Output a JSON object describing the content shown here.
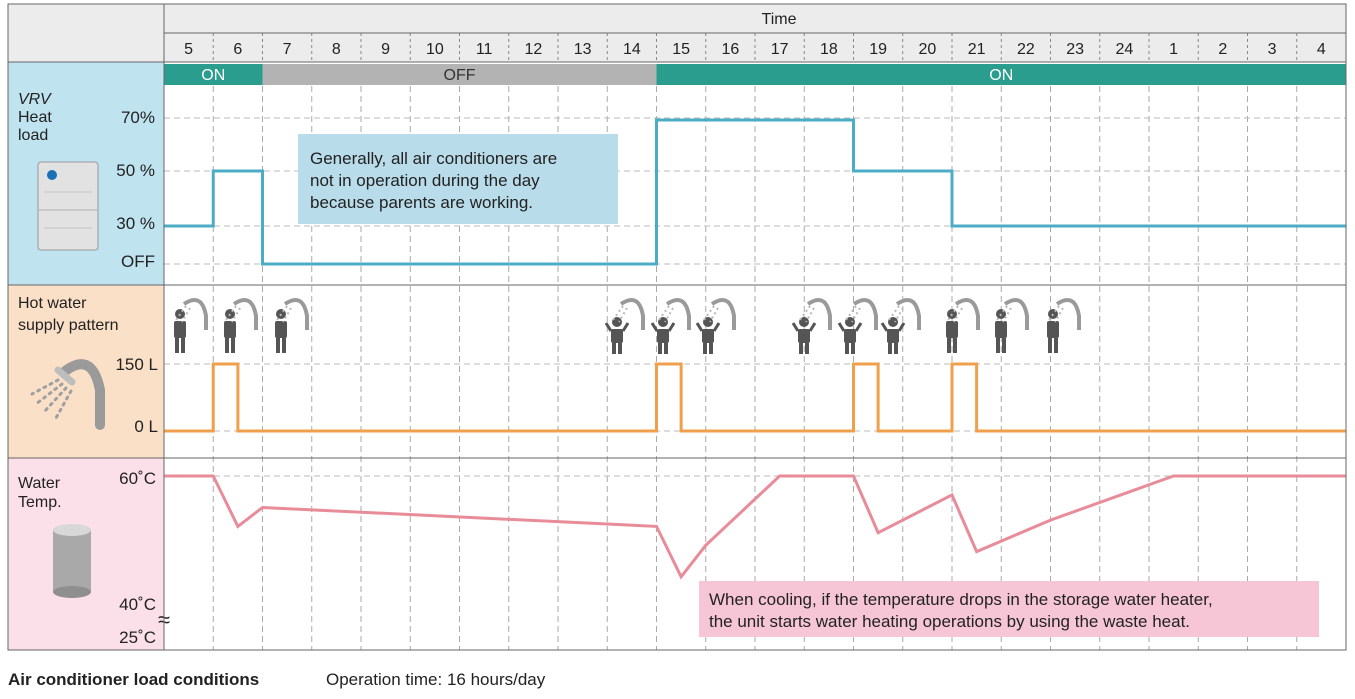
{
  "header": {
    "time_label": "Time"
  },
  "hours": [
    "5",
    "6",
    "7",
    "8",
    "9",
    "10",
    "11",
    "12",
    "13",
    "14",
    "15",
    "16",
    "17",
    "18",
    "19",
    "20",
    "21",
    "22",
    "23",
    "24",
    "1",
    "2",
    "3",
    "4"
  ],
  "operation_bar": [
    {
      "label": "ON",
      "state": "on",
      "start_index": 0,
      "end_index": 2
    },
    {
      "label": "OFF",
      "state": "off",
      "start_index": 2,
      "end_index": 10
    },
    {
      "label": "ON",
      "state": "on",
      "start_index": 10,
      "end_index": 24
    }
  ],
  "sections": {
    "vrv": {
      "title_italic": "VRV",
      "title_rest": [
        "Heat",
        "load"
      ],
      "levels": [
        "70%",
        "50 %",
        "30 %",
        "OFF"
      ]
    },
    "hot_water": {
      "title": [
        "Hot water",
        "supply pattern"
      ],
      "levels": [
        "150 L",
        "0 L"
      ]
    },
    "water_temp": {
      "title": [
        "Water",
        "Temp."
      ],
      "levels": [
        "60˚C",
        "40˚C",
        "25˚C"
      ],
      "break_mark": "≈"
    }
  },
  "notes": {
    "heat_note": [
      "Generally, all air conditioners are",
      "not in operation during the day",
      "because parents are working."
    ],
    "cool_note": [
      "When cooling, if the temperature drops in the storage water heater,",
      "the unit starts water heating operations by using the waste heat."
    ]
  },
  "footer": {
    "title": "Air conditioner load conditions",
    "detail": "Operation time: 16 hours/day"
  },
  "colors": {
    "on": "#2a9d8f",
    "off": "#b3b3b3",
    "heat": "#4bacc6",
    "water": "#f0a04b",
    "temp": "#e88c9a",
    "heat_bg": "#bfe3ef",
    "water_bg": "#fbe0c8",
    "temp_bg": "#fbe0ea"
  },
  "chart_data": [
    {
      "type": "line",
      "name": "VRV Heat load",
      "x_unit": "hour index (0 = 5:00)",
      "levels": [
        "OFF",
        "30 %",
        "50 %",
        "70%"
      ],
      "points": [
        [
          0,
          30
        ],
        [
          1,
          30
        ],
        [
          1,
          50
        ],
        [
          2,
          50
        ],
        [
          2,
          0
        ],
        [
          10,
          0
        ],
        [
          10,
          70
        ],
        [
          14,
          70
        ],
        [
          14,
          50
        ],
        [
          16,
          50
        ],
        [
          16,
          30
        ],
        [
          24,
          30
        ]
      ]
    },
    {
      "type": "line",
      "name": "Hot water supply pattern",
      "y_unit": "L",
      "points": [
        [
          0,
          0
        ],
        [
          1,
          0
        ],
        [
          1,
          150
        ],
        [
          1.5,
          150
        ],
        [
          1.5,
          0
        ],
        [
          10,
          0
        ],
        [
          10,
          150
        ],
        [
          10.5,
          150
        ],
        [
          10.5,
          0
        ],
        [
          14,
          0
        ],
        [
          14,
          150
        ],
        [
          14.5,
          150
        ],
        [
          14.5,
          0
        ],
        [
          16,
          0
        ],
        [
          16,
          150
        ],
        [
          16.5,
          150
        ],
        [
          16.5,
          0
        ],
        [
          24,
          0
        ]
      ]
    },
    {
      "type": "line",
      "name": "Water Temp.",
      "y_unit": "˚C",
      "points": [
        [
          0,
          60
        ],
        [
          1,
          60
        ],
        [
          1.5,
          52
        ],
        [
          2,
          55
        ],
        [
          10,
          52
        ],
        [
          10.5,
          44
        ],
        [
          11,
          49
        ],
        [
          12.5,
          60
        ],
        [
          14,
          60
        ],
        [
          14.5,
          51
        ],
        [
          16,
          57
        ],
        [
          16.5,
          48
        ],
        [
          18,
          53
        ],
        [
          20.5,
          60
        ],
        [
          24,
          60
        ]
      ]
    }
  ]
}
